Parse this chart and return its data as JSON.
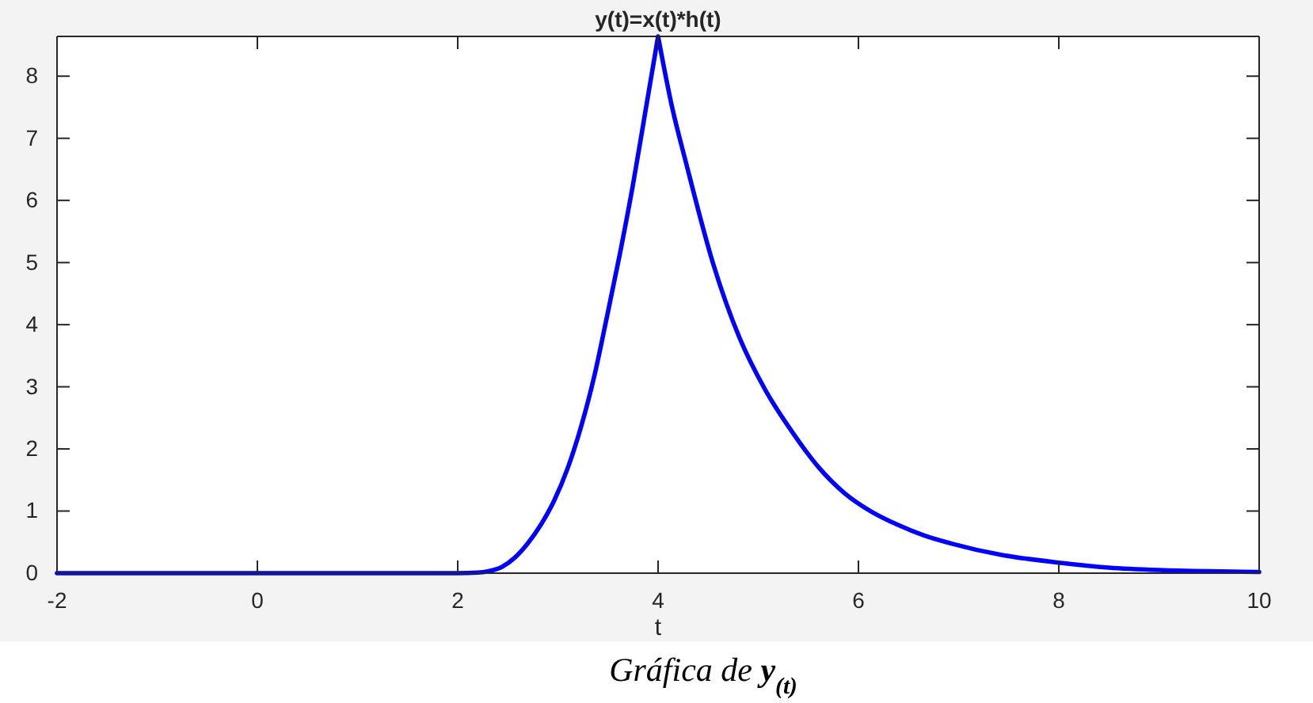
{
  "chart_data": {
    "type": "line",
    "title": "y(t)=x(t)*h(t)",
    "xlabel": "t",
    "annotations": [
      "Gráfica de y$_{(t)}$"
    ],
    "x": [
      -2,
      2,
      2.2,
      2.3,
      2.44,
      2.57,
      2.7,
      2.83,
      2.96,
      3.1,
      3.23,
      3.36,
      3.49,
      3.62,
      3.75,
      3.87,
      4,
      4.14,
      4.28,
      4.55,
      4.81,
      5.07,
      5.34,
      5.6,
      5.86,
      6.13,
      6.39,
      6.65,
      6.92,
      7.44,
      8,
      8.5,
      9,
      9.5,
      10
    ],
    "series": [
      {
        "color": "#0000ff",
        "values": [
          0,
          0,
          0.01,
          0.03,
          0.1,
          0.25,
          0.48,
          0.78,
          1.16,
          1.7,
          2.35,
          3.15,
          4.13,
          5.15,
          6.26,
          7.4,
          8.64,
          7.5,
          6.6,
          4.98,
          3.8,
          2.95,
          2.27,
          1.71,
          1.29,
          0.99,
          0.78,
          0.61,
          0.48,
          0.29,
          0.17,
          0.09,
          0.05,
          0.03,
          0.02
        ]
      }
    ],
    "xlim": [
      -2,
      10
    ],
    "xticks": [
      -2,
      0,
      2,
      4,
      6,
      8,
      10
    ],
    "ylim": [
      0,
      8.64
    ],
    "yticks": [
      0,
      1,
      2,
      3,
      4,
      5,
      6,
      7,
      8
    ],
    "line_style": "solid"
  }
}
